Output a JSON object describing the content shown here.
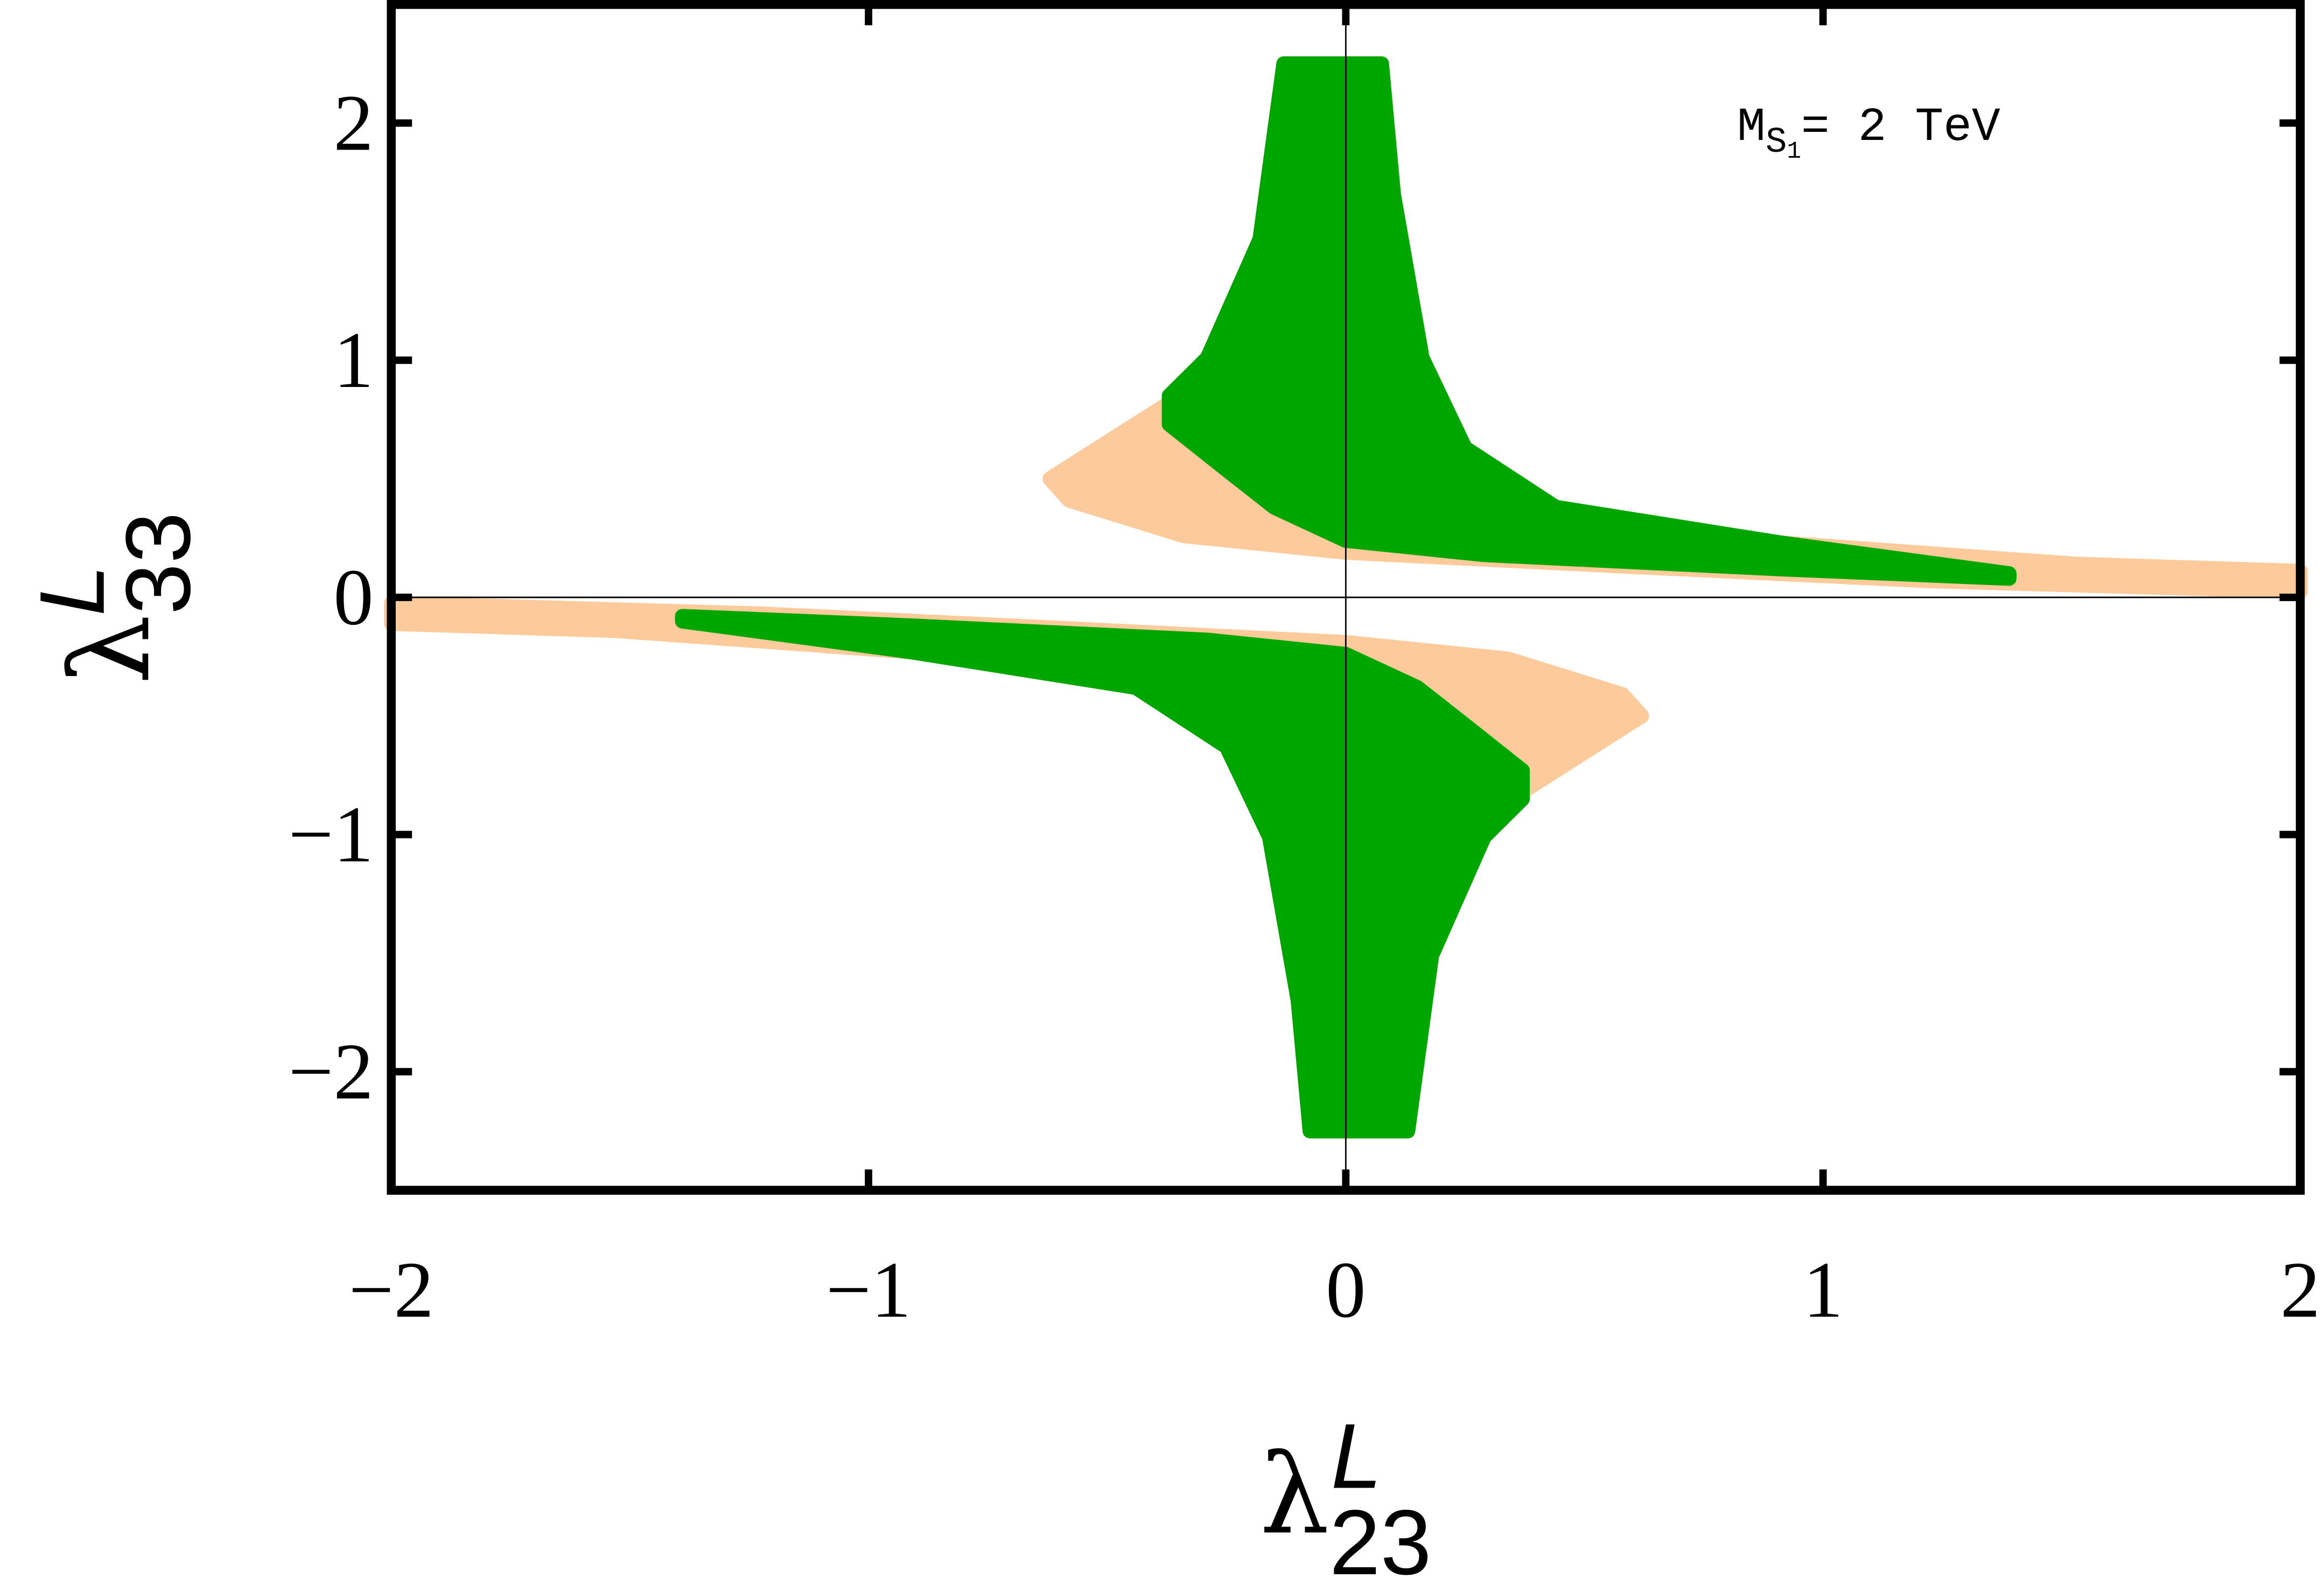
{
  "chart_data": {
    "type": "region",
    "annotation": [
      "M",
      "S",
      "1",
      "=  2 TeV"
    ],
    "xlabel": {
      "symbol": "λ",
      "sub": "23",
      "sup": "L"
    },
    "ylabel": {
      "symbol": "λ",
      "sub": "33",
      "sup": "L"
    },
    "xlim": [
      -2,
      2
    ],
    "ylim": [
      -2.5,
      2.5
    ],
    "xticks": [
      {
        "value": -2,
        "label": "−2"
      },
      {
        "value": -1,
        "label": "−1"
      },
      0,
      1,
      2
    ],
    "yticks": [
      {
        "value": -2,
        "label": "−2"
      },
      {
        "value": -1,
        "label": "−1"
      },
      0,
      1,
      2
    ],
    "origin_lines": true,
    "series": [
      {
        "color": "#fdca9b",
        "x": [
          -0.62,
          -0.37,
          -0.29,
          -0.18,
          -0.13,
          0.075,
          0.1,
          0.16,
          0.25,
          0.44,
          0.91,
          1.53,
          2,
          2,
          1.22,
          0.6,
          0,
          -0.34,
          -0.58
        ],
        "y": [
          0.5,
          0.82,
          1.01,
          1.51,
          2.25,
          2.25,
          1.7,
          1.01,
          0.63,
          0.38,
          0.23,
          0.14,
          0.11,
          0.025,
          0.07,
          0.13,
          0.19,
          0.26,
          0.41
        ]
      },
      {
        "color": "#fdca9b",
        "x": [
          0.62,
          0.37,
          0.29,
          0.18,
          0.13,
          -0.075,
          -0.1,
          -0.16,
          -0.25,
          -0.44,
          -0.91,
          -1.53,
          -2,
          -2,
          -1.22,
          -0.6,
          0,
          0.34,
          0.58
        ],
        "y": [
          -0.5,
          -0.82,
          -1.01,
          -1.51,
          -2.25,
          -2.25,
          -1.7,
          -1.01,
          -0.63,
          -0.38,
          -0.23,
          -0.14,
          -0.11,
          -0.025,
          -0.07,
          -0.13,
          -0.19,
          -0.26,
          -0.41
        ]
      },
      {
        "color": "#00a600",
        "x": [
          -0.13,
          0.075,
          0.1,
          0.16,
          0.25,
          0.44,
          0.91,
          1.39,
          1.39,
          0.91,
          0.29,
          0,
          -0.15,
          -0.27,
          -0.37,
          -0.37,
          -0.29,
          -0.18
        ],
        "y": [
          2.25,
          2.25,
          1.7,
          1.01,
          0.63,
          0.38,
          0.23,
          0.1,
          0.08,
          0.12,
          0.18,
          0.24,
          0.38,
          0.57,
          0.73,
          0.85,
          1.01,
          1.51
        ]
      },
      {
        "color": "#00a600",
        "x": [
          0.13,
          -0.075,
          -0.1,
          -0.16,
          -0.25,
          -0.44,
          -0.91,
          -1.39,
          -1.39,
          -0.91,
          -0.29,
          0,
          0.15,
          0.27,
          0.37,
          0.37,
          0.29,
          0.18
        ],
        "y": [
          -2.25,
          -2.25,
          -1.7,
          -1.01,
          -0.63,
          -0.38,
          -0.23,
          -0.1,
          -0.08,
          -0.12,
          -0.18,
          -0.24,
          -0.38,
          -0.57,
          -0.73,
          -0.85,
          -1.01,
          -1.51
        ]
      }
    ]
  }
}
